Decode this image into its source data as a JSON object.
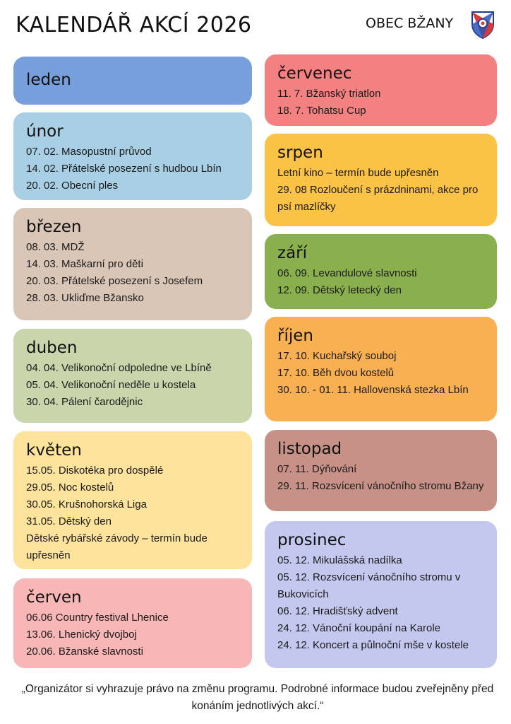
{
  "header": {
    "title": "KALENDÁŘ AKCÍ 2026",
    "organization": "OBEC BŽANY",
    "crest_icon": "coat-of-arms-icon"
  },
  "colors": {
    "leden": "#779fdc",
    "unor": "#a8cfe3",
    "brezen": "#d9c6b7",
    "duben": "#c9d5ab",
    "kveten": "#fde39b",
    "cerven": "#f8b6b6",
    "cervenec": "#f48181",
    "srpen": "#fbc345",
    "zari": "#8ab04e",
    "rijen": "#f9b053",
    "listopad": "#c79187",
    "prosinec": "#c4c8ee"
  },
  "months": {
    "leden": {
      "name": "leden",
      "events": []
    },
    "unor": {
      "name": "únor",
      "events": [
        "07. 02. Masopustní průvod",
        "14. 02. Přátelské posezení s hudbou Lbín",
        "20. 02. Obecní ples"
      ]
    },
    "brezen": {
      "name": "březen",
      "events": [
        "08. 03. MDŽ",
        "14. 03.  Maškarní pro děti",
        "20. 03. Přátelské posezení s Josefem",
        "28. 03. Ukliďme Bžansko"
      ]
    },
    "duben": {
      "name": "duben",
      "events": [
        "04. 04. Velikonoční odpoledne ve Lbíně",
        "05. 04. Velikonoční neděle u kostela",
        "30. 04. Pálení čarodějnic"
      ]
    },
    "kveten": {
      "name": "květen",
      "events": [
        "15.05. Diskotéka pro dospělé",
        "29.05. Noc kostelů",
        "30.05. Krušnohorská Liga",
        "31.05.  Dětský den",
        "Dětské rybářské závody – termín bude upřesněn"
      ]
    },
    "cerven": {
      "name": "červen",
      "events": [
        "06.06 Country festival Lhenice",
        "13.06.  Lhenický dvojboj",
        "20.06. Bžanské slavnosti"
      ]
    },
    "cervenec": {
      "name": "červenec",
      "events": [
        "11. 7. Bžanský triatlon",
        "18. 7. Tohatsu Cup"
      ]
    },
    "srpen": {
      "name": "srpen",
      "events": [
        "Letní kino – termín bude upřesněn",
        "29. 08 Rozloučení s prázdninami, akce pro psí mazlíčky"
      ]
    },
    "zari": {
      "name": "září",
      "events": [
        "06. 09. Levandulové slavnosti",
        "12. 09.  Dětský letecký den"
      ]
    },
    "rijen": {
      "name": "říjen",
      "events": [
        "17. 10. Kuchařský souboj",
        "17. 10. Běh dvou kostelů",
        "30. 10. - 01. 11. Hallovenská stezka Lbín"
      ]
    },
    "listopad": {
      "name": "listopad",
      "events": [
        "07. 11. Dýňování",
        "29. 11. Rozsvícení vánočního stromu Bžany"
      ]
    },
    "prosinec": {
      "name": "prosinec",
      "events": [
        "05. 12. Mikulášská nadílka",
        "05. 12. Rozsvícení vánočního stromu v Bukovicích",
        "06. 12. Hradišťský advent",
        "24. 12. Vánoční koupání na Karole",
        "24. 12. Koncert a půlnoční mše v kostele"
      ]
    }
  },
  "footer": {
    "note": "„Organizátor si vyhrazuje právo na změnu programu. Podrobné informace budou zveřejněny před konáním jednotlivých akcí.“"
  }
}
